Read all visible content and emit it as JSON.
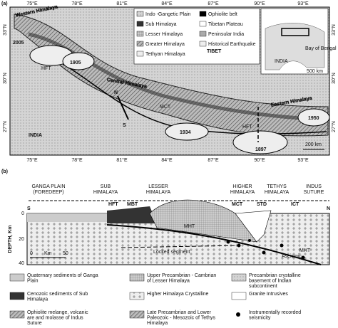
{
  "panel_a": {
    "label": "(a)",
    "lon_labels": [
      "75°E",
      "78°E",
      "81°E",
      "84°E",
      "87°E",
      "90°E",
      "93°E"
    ],
    "lat_labels": [
      "33°N",
      "30°N",
      "27°N"
    ],
    "legend": [
      "Indo -Gangetic Plain",
      "Sub Himalaya",
      "Lesser Himalaya",
      "Greater Himalaya",
      "Tethyan Himalaya",
      "Ophiolite belt",
      "Tibetan Plateau",
      "Peninsular India",
      "Historical Earthquake"
    ],
    "regions": [
      "Western Himalaya",
      "Central Himalaya",
      "Eastern Himalaya"
    ],
    "earthquakes": [
      "2005",
      "1905",
      "1934",
      "1897",
      "1950"
    ],
    "faults": [
      "HFT",
      "MCT",
      "HFT"
    ],
    "places": [
      "TIBET",
      "INDIA"
    ],
    "section_ends": [
      "N",
      "S"
    ],
    "scale": "200 km",
    "inset": {
      "labels": [
        "INDIA",
        "Bay of Bengal"
      ],
      "scale": "500 km"
    }
  },
  "panel_b": {
    "label": "(b)",
    "zones": [
      "GANGA PLAIN (FOREDEEP)",
      "SUB HIMALAYA",
      "LESSER HIMALAYA",
      "HIGHER HIMALAYA",
      "TETHYS HIMALAYA",
      "INDUS SUTURE"
    ],
    "ends": [
      "S",
      "N"
    ],
    "faults": [
      "HFT",
      "MBT",
      "MCT",
      "STD",
      "ICT"
    ],
    "depth_label": "DEPTH, Km",
    "depth_ticks": [
      "0",
      "20",
      "40"
    ],
    "scale": {
      "unit": "Km",
      "start": "0",
      "end": "50"
    },
    "annotations": [
      "Locked segment",
      "MHT",
      "MHT",
      "Aseismic"
    ],
    "legend": [
      "Quaternary sediments of Ganga Plain",
      "Upper Precambrian - Cambrian of Lesser Himalaya",
      "Precambrian crystalline basement of Indian subcontinent",
      "Cenozoic sediments of Sub Himalaya",
      "Higher Himalaya Crystalline",
      "Granite Intrusives",
      "Ophiolite melange, volcanic are and molasse of Indus Suture",
      "Late Precambrian and Lower Paleozoic - Mesozoic of Tethys Himalaya",
      "Instrumentally recorded seismicity"
    ]
  }
}
